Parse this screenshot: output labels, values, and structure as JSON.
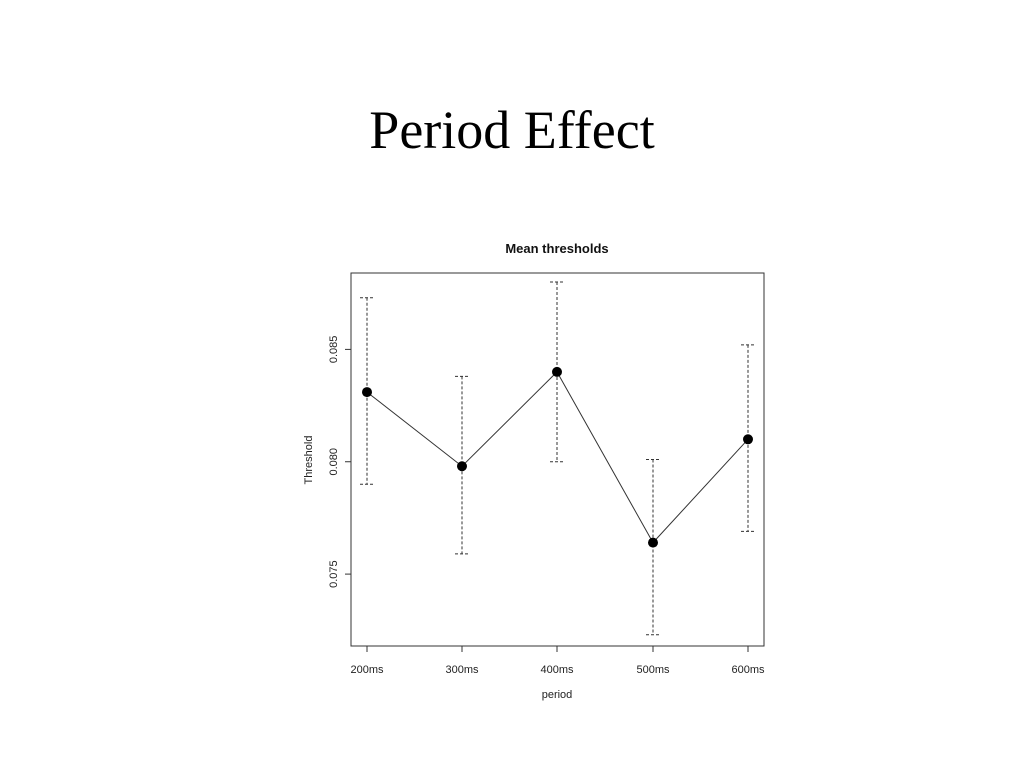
{
  "slide": {
    "title": "Period Effect"
  },
  "chart_data": {
    "type": "line",
    "title": "Mean thresholds",
    "xlabel": "period",
    "ylabel": "Threshold",
    "categories": [
      "200ms",
      "300ms",
      "400ms",
      "500ms",
      "600ms"
    ],
    "series": [
      {
        "values": [
          0.0831,
          0.0798,
          0.084,
          0.0764,
          0.081
        ],
        "upper": [
          0.0873,
          0.0838,
          0.088,
          0.0801,
          0.0852
        ],
        "lower": [
          0.079,
          0.0759,
          0.08,
          0.0723,
          0.0769
        ]
      }
    ],
    "ylim": [
      0.0718,
      0.0884
    ],
    "yticks": [
      0.075,
      0.08,
      0.085
    ],
    "ytick_labels": [
      "0.075",
      "0.080",
      "0.085"
    ],
    "error_bars": true,
    "grid": false,
    "legend": false
  }
}
